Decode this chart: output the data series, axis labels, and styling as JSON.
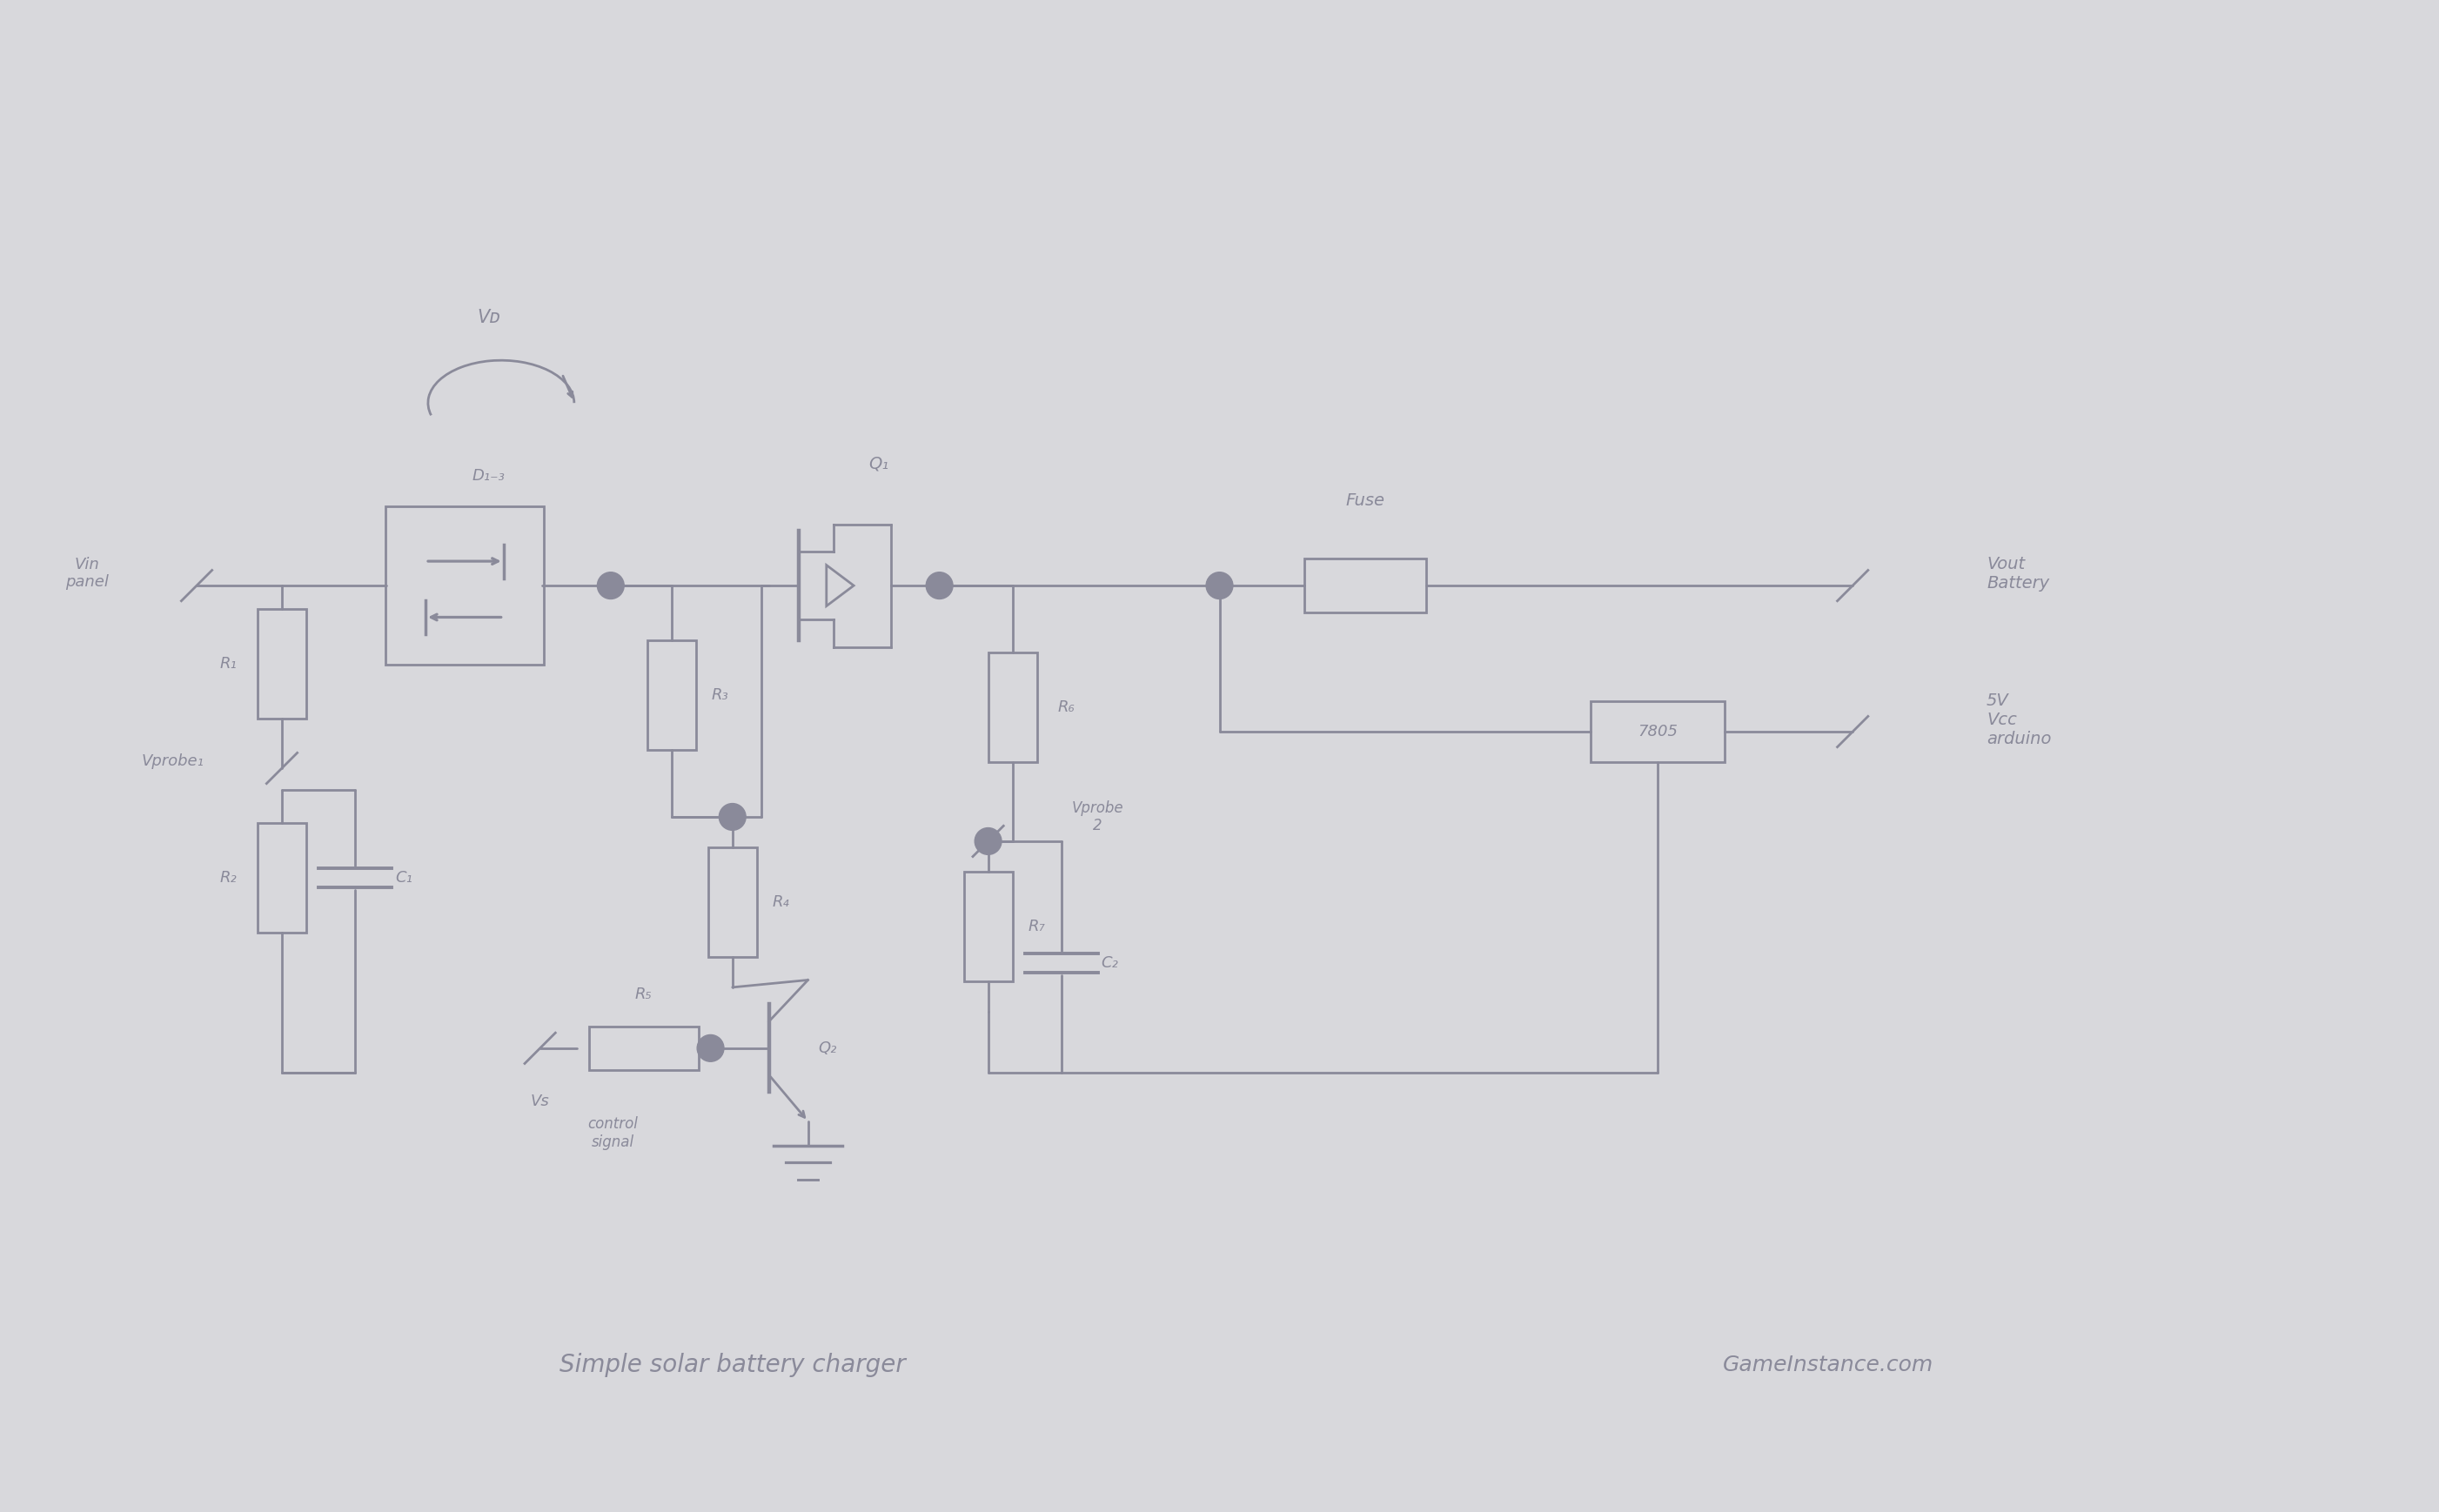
{
  "bg_color": "#d8d8dc",
  "line_color": "#8a8a9a",
  "text_color": "#8a8a9a",
  "line_width": 2.0,
  "fig_width": 28.03,
  "fig_height": 17.38,
  "title": "Simple solar battery charger",
  "subtitle": "GameInstance.com",
  "labels": {
    "vin": "Vin\npanel",
    "vd": "Vᴅ",
    "d13": "D₁₋₃",
    "q1": "Q₁",
    "fuse": "Fuse",
    "vout": "Vout\nBattery",
    "ra": "R₁",
    "r3": "R₃",
    "r6": "R₆",
    "r4": "R₄",
    "r7": "R₇",
    "r5": "R₅",
    "r2": "R₂",
    "c1": "C₁",
    "c2": "C₂",
    "q2": "Q₂",
    "vprobe1": "Vprobe₁",
    "vprobe2": "Vprobe\n2",
    "reg7805": "7805",
    "v5": "5V\nVcc\narduino",
    "vs": "Vs",
    "control": "control\nsignal"
  }
}
